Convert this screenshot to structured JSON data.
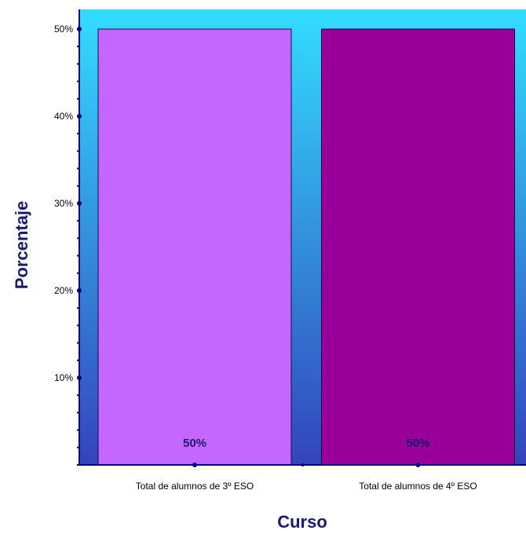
{
  "chart_data": {
    "type": "bar",
    "title": "",
    "xlabel": "Curso",
    "ylabel": "Porcentaje",
    "categories": [
      "Total de alumnos de 3º ESO",
      "Total de alumnos de 4º ESO"
    ],
    "values": [
      50,
      50
    ],
    "data_labels": [
      "50%",
      "50%"
    ],
    "ylim": [
      0,
      50
    ],
    "yticks": [
      10,
      20,
      30,
      40,
      50
    ],
    "ytick_labels": [
      "10%",
      "20%",
      "30%",
      "40%",
      "50%"
    ],
    "grid": false,
    "legend": "none",
    "colors": {
      "bars": [
        "#c466ff",
        "#990099"
      ],
      "plot_background_top": "#33ddff",
      "plot_background_bottom": "#3344bb",
      "axis": "#000080",
      "text_accent": "#1a1a6e"
    }
  }
}
